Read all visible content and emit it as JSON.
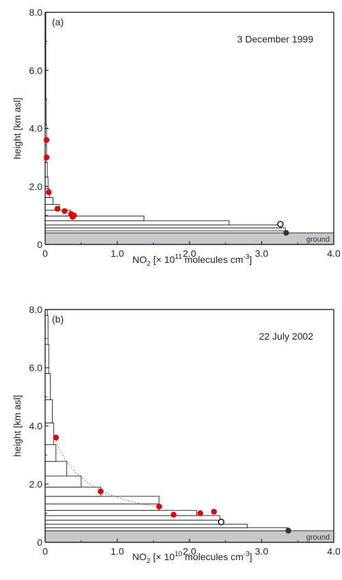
{
  "colors": {
    "point_fill": "#e00000",
    "ground_fill": "#c8c8cc",
    "axis": "#000000",
    "bar_stroke": "#000000",
    "fit_line": "#555555",
    "black_point": "#333333"
  },
  "chart_data": [
    {
      "type": "bar",
      "orientation": "horizontal",
      "panel_label": "(a)",
      "date": "3 December 1999",
      "xlabel": {
        "main": "NO",
        "sub": "2",
        "mid": " [× 10",
        "sup1": "11",
        "rest": " molecules cm",
        "sup2": "-3",
        "end": "]"
      },
      "ylabel": "height [km asl]",
      "xlim": [
        0,
        4.0
      ],
      "ylim": [
        0,
        8.0
      ],
      "xticks": [
        "0",
        "1.0",
        "2.0",
        "3.0",
        "4.0"
      ],
      "xtick_values": [
        0,
        1.0,
        2.0,
        3.0,
        4.0
      ],
      "yticks": [
        "0",
        "2.0",
        "4.0",
        "6.0",
        "8.0"
      ],
      "ytick_values": [
        0,
        2.0,
        4.0,
        6.0,
        8.0
      ],
      "ground_label": "ground",
      "ground_top": 0.4,
      "profile_bars": [
        {
          "bottom": 0.4,
          "top": 0.47,
          "value": 3.35
        },
        {
          "bottom": 0.47,
          "top": 0.57,
          "value": 3.33
        },
        {
          "bottom": 0.57,
          "top": 0.67,
          "value": 3.27
        },
        {
          "bottom": 0.67,
          "top": 0.82,
          "value": 2.55
        },
        {
          "bottom": 0.82,
          "top": 0.98,
          "value": 1.37
        },
        {
          "bottom": 0.98,
          "top": 1.18,
          "value": 0.35
        },
        {
          "bottom": 1.18,
          "top": 1.38,
          "value": 0.2
        },
        {
          "bottom": 1.38,
          "top": 1.62,
          "value": 0.11
        },
        {
          "bottom": 1.62,
          "top": 1.92,
          "value": 0.06
        },
        {
          "bottom": 1.92,
          "top": 2.32,
          "value": 0.04
        },
        {
          "bottom": 2.32,
          "top": 2.82,
          "value": 0.03
        },
        {
          "bottom": 2.82,
          "top": 3.42,
          "value": 0.02
        },
        {
          "bottom": 3.42,
          "top": 4.12,
          "value": 0.02
        },
        {
          "bottom": 4.12,
          "top": 5.0,
          "value": 0.015
        },
        {
          "bottom": 5.0,
          "top": 6.2,
          "value": 0.01
        },
        {
          "bottom": 6.2,
          "top": 8.0,
          "value": 0.01
        }
      ],
      "red_points": [
        {
          "x": 0.02,
          "y": 3.6
        },
        {
          "x": 0.02,
          "y": 3.0
        },
        {
          "x": 0.05,
          "y": 1.8
        },
        {
          "x": 0.17,
          "y": 1.23
        },
        {
          "x": 0.27,
          "y": 1.15
        },
        {
          "x": 0.36,
          "y": 1.05
        },
        {
          "x": 0.4,
          "y": 1.0
        },
        {
          "x": 0.38,
          "y": 0.95
        }
      ],
      "open_point": {
        "x": 3.26,
        "y": 0.7
      },
      "black_point": {
        "x": 3.34,
        "y": 0.4
      },
      "fit_curve": []
    },
    {
      "type": "bar",
      "orientation": "horizontal",
      "panel_label": "(b)",
      "date": "22 July 2002",
      "xlabel": {
        "main": "NO",
        "sub": "2",
        "mid": " [× 10",
        "sup1": "10",
        "rest": " molecules cm",
        "sup2": "-3",
        "end": "]"
      },
      "ylabel": "height [km asl]",
      "xlim": [
        0,
        4.0
      ],
      "ylim": [
        0,
        8.0
      ],
      "xticks": [
        "0",
        "1.0",
        "2.0",
        "3.0",
        "4.0"
      ],
      "xtick_values": [
        0,
        1.0,
        2.0,
        3.0,
        4.0
      ],
      "yticks": [
        "0",
        "2.0",
        "4.0",
        "6.0",
        "8.0"
      ],
      "ytick_values": [
        0,
        2.0,
        4.0,
        6.0,
        8.0
      ],
      "ground_label": "ground",
      "ground_top": 0.4,
      "profile_bars": [
        {
          "bottom": 0.4,
          "top": 0.5,
          "value": 3.37
        },
        {
          "bottom": 0.5,
          "top": 0.62,
          "value": 2.8
        },
        {
          "bottom": 0.62,
          "top": 0.76,
          "value": 2.42
        },
        {
          "bottom": 0.76,
          "top": 0.92,
          "value": 2.42
        },
        {
          "bottom": 0.92,
          "top": 1.1,
          "value": 2.1
        },
        {
          "bottom": 1.1,
          "top": 1.32,
          "value": 1.58
        },
        {
          "bottom": 1.32,
          "top": 1.58,
          "value": 1.58
        },
        {
          "bottom": 1.58,
          "top": 1.9,
          "value": 0.77
        },
        {
          "bottom": 1.9,
          "top": 2.28,
          "value": 0.5
        },
        {
          "bottom": 2.28,
          "top": 2.78,
          "value": 0.3
        },
        {
          "bottom": 2.78,
          "top": 3.36,
          "value": 0.15
        },
        {
          "bottom": 3.36,
          "top": 4.1,
          "value": 0.12
        },
        {
          "bottom": 4.1,
          "top": 4.9,
          "value": 0.1
        },
        {
          "bottom": 4.9,
          "top": 5.8,
          "value": 0.07
        },
        {
          "bottom": 5.8,
          "top": 6.8,
          "value": 0.05
        },
        {
          "bottom": 6.8,
          "top": 7.8,
          "value": 0.04
        },
        {
          "bottom": 7.8,
          "top": 8.0,
          "value": 0.03
        }
      ],
      "red_points": [
        {
          "x": 0.15,
          "y": 3.6
        },
        {
          "x": 0.77,
          "y": 1.75
        },
        {
          "x": 1.58,
          "y": 1.23
        },
        {
          "x": 1.78,
          "y": 0.95
        },
        {
          "x": 2.15,
          "y": 1.0
        },
        {
          "x": 2.34,
          "y": 1.05
        }
      ],
      "open_point": {
        "x": 2.44,
        "y": 0.7
      },
      "black_point": {
        "x": 3.37,
        "y": 0.4
      },
      "fit_curve": [
        {
          "x": 0.12,
          "y": 3.8
        },
        {
          "x": 0.18,
          "y": 3.3
        },
        {
          "x": 0.28,
          "y": 2.85
        },
        {
          "x": 0.42,
          "y": 2.4
        },
        {
          "x": 0.62,
          "y": 2.0
        },
        {
          "x": 0.85,
          "y": 1.68
        },
        {
          "x": 1.12,
          "y": 1.45
        },
        {
          "x": 1.38,
          "y": 1.3
        },
        {
          "x": 1.58,
          "y": 1.22
        }
      ]
    }
  ]
}
